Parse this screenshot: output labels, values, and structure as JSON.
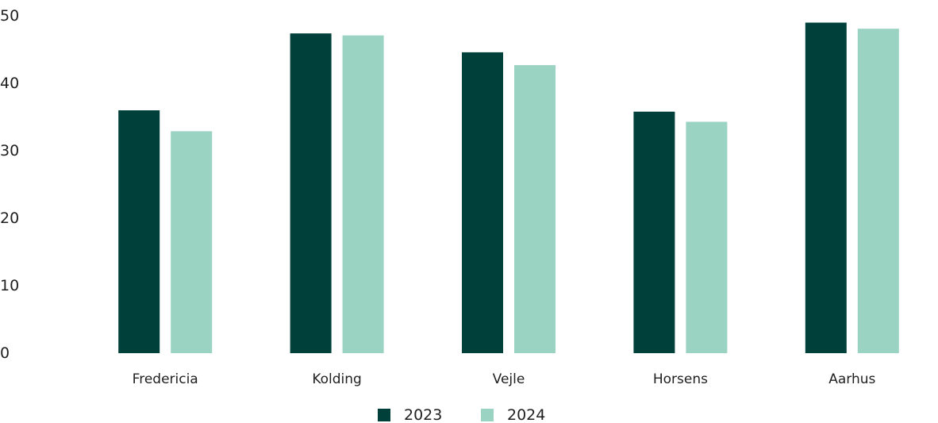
{
  "chart_data": {
    "type": "bar",
    "categories": [
      "Fredericia",
      "Kolding",
      "Vejle",
      "Horsens",
      "Aarhus"
    ],
    "series": [
      {
        "name": "2023",
        "color": "#00403a",
        "values": [
          36,
          47.4,
          44.6,
          35.8,
          49
        ]
      },
      {
        "name": "2024",
        "color": "#9bd3c3",
        "values": [
          32.9,
          47.1,
          42.7,
          34.3,
          48.1
        ]
      }
    ],
    "ylim": [
      0,
      50
    ],
    "yticks": [
      "0",
      "10",
      "20",
      "30",
      "40",
      "50"
    ],
    "ytick_values": [
      0,
      10,
      20,
      30,
      40,
      50
    ],
    "grid": false,
    "legend_position": "bottom-center",
    "title": "",
    "xlabel": "",
    "ylabel": ""
  }
}
